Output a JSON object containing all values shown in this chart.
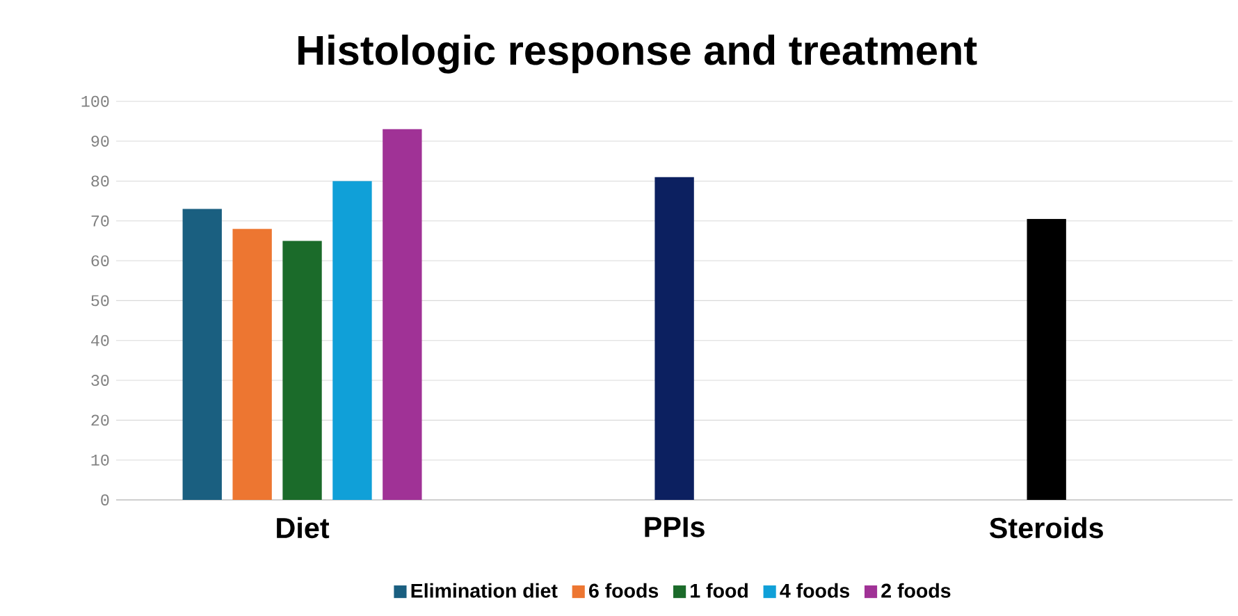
{
  "chart_data": {
    "type": "bar",
    "title": "Histologic response and treatment",
    "categories": [
      "Diet",
      "PPIs",
      "Steroids"
    ],
    "series": [
      {
        "name": "Elimination diet",
        "color": "#1a5f80",
        "values": [
          73,
          null,
          null
        ]
      },
      {
        "name": "6 foods",
        "color": "#ed7631",
        "values": [
          68,
          null,
          null
        ]
      },
      {
        "name": "1 food",
        "color": "#1b6b2a",
        "values": [
          65,
          null,
          null
        ]
      },
      {
        "name": "4 foods",
        "color": "#10a0d8",
        "values": [
          80,
          null,
          null
        ]
      },
      {
        "name": "2 foods",
        "color": "#a03296",
        "values": [
          93,
          null,
          null
        ]
      },
      {
        "color": "#0c2060",
        "values": [
          null,
          81,
          null
        ]
      },
      {
        "color": "#000000",
        "values": [
          null,
          null,
          70.5
        ]
      }
    ],
    "ylim": [
      0,
      100
    ],
    "yticks": [
      0,
      10,
      20,
      30,
      40,
      50,
      60,
      70,
      80,
      90,
      100
    ],
    "grid": "y",
    "legend": "bottom"
  }
}
